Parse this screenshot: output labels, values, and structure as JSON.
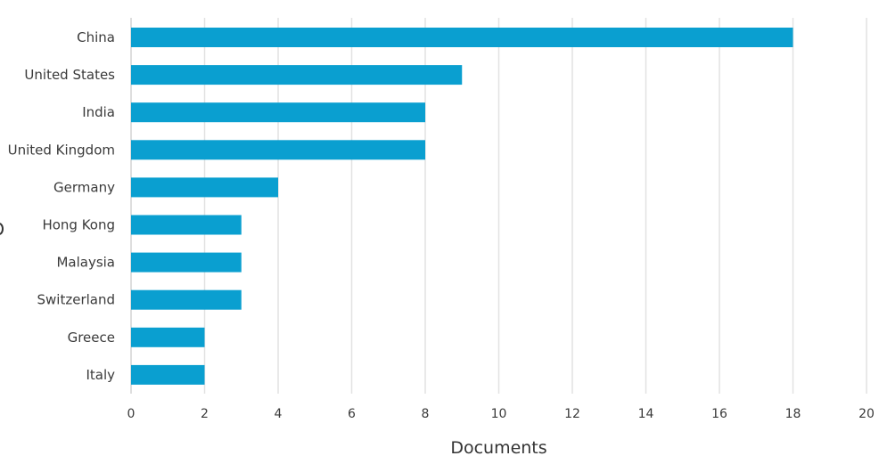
{
  "chart_data": {
    "type": "bar",
    "orientation": "horizontal",
    "categories": [
      "China",
      "United States",
      "India",
      "United Kingdom",
      "Germany",
      "Hong Kong",
      "Malaysia",
      "Switzerland",
      "Greece",
      "Italy"
    ],
    "values": [
      18,
      9,
      8,
      8,
      4,
      3,
      3,
      3,
      2,
      2
    ],
    "xlabel": "Documents",
    "ylabel": "",
    "title": "",
    "xlim": [
      0,
      20
    ],
    "xticks": [
      "0",
      "2",
      "4",
      "6",
      "8",
      "10",
      "12",
      "14",
      "16",
      "18",
      "20"
    ],
    "grid": "vertical",
    "legend": "none",
    "bar_color": "#0a9fd0"
  }
}
